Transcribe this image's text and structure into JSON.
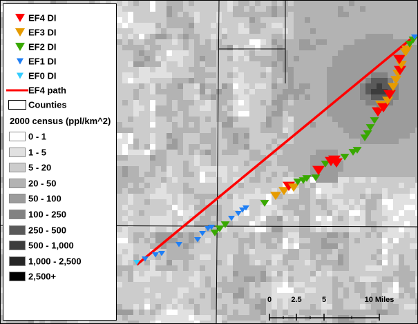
{
  "legend": {
    "items": [
      {
        "label": "EF4 DI",
        "color": "#ff0000",
        "symbol": "triangle-down-icon"
      },
      {
        "label": "EF3 DI",
        "color": "#e69b00",
        "symbol": "triangle-down-icon"
      },
      {
        "label": "EF2 DI",
        "color": "#38a800",
        "symbol": "triangle-down-icon"
      },
      {
        "label": "EF1 DI",
        "color": "#1f7ff5",
        "symbol": "triangle-down-icon"
      },
      {
        "label": "EF0 DI",
        "color": "#33ccff",
        "symbol": "triangle-down-icon"
      }
    ],
    "path_label": "EF4 path",
    "path_color": "#ff0000",
    "counties_label": "Counties",
    "census_title": "2000 census (ppl/km^2)",
    "census_classes": [
      {
        "label": "0 - 1",
        "color": "#ffffff"
      },
      {
        "label": "1 - 5",
        "color": "#e1e1e1"
      },
      {
        "label": "5 - 20",
        "color": "#cccccc"
      },
      {
        "label": "20 - 50",
        "color": "#b3b3b3"
      },
      {
        "label": "50 - 100",
        "color": "#9c9c9c"
      },
      {
        "label": "100 - 250",
        "color": "#828282"
      },
      {
        "label": "250 - 500",
        "color": "#5a5a5a"
      },
      {
        "label": "500 - 1,000",
        "color": "#3c3c3c"
      },
      {
        "label": "1,000 - 2,500",
        "color": "#262626"
      },
      {
        "label": "2,500+",
        "color": "#000000"
      }
    ]
  },
  "scale_bar": {
    "labels": [
      "0",
      "2.5",
      "5",
      "10 Miles"
    ]
  }
}
